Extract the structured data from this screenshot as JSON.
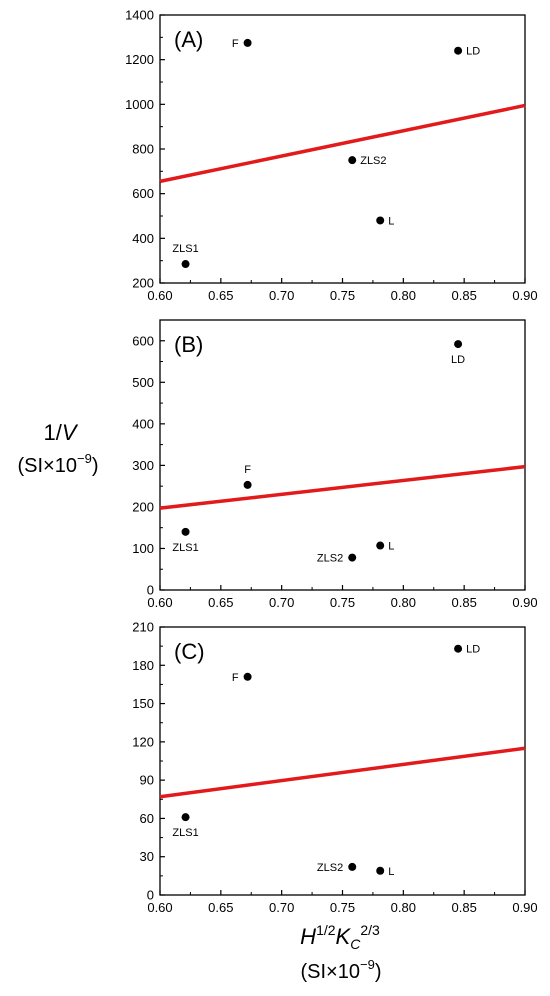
{
  "y_axis_title": {
    "main": "1/",
    "var": "V",
    "units_base": "(SI×10",
    "units_exp": "−9",
    "units_close": ")"
  },
  "x_axis_title": {
    "h": "H",
    "h_exp": "1/2",
    "k": "K",
    "k_sub": "C",
    "k_exp": "2/3",
    "units_base": "(SI×10",
    "units_exp": "−9",
    "units_close": ")"
  },
  "chart_data": [
    {
      "type": "scatter",
      "panel_label": "(A)",
      "xlim": [
        0.6,
        0.9
      ],
      "ylim": [
        200,
        1400
      ],
      "x_ticks": [
        "0.60",
        "0.65",
        "0.70",
        "0.75",
        "0.80",
        "0.85",
        "0.90"
      ],
      "y_ticks": [
        "200",
        "400",
        "600",
        "800",
        "1000",
        "1200",
        "1400"
      ],
      "points": [
        {
          "label": "F",
          "x": 0.672,
          "y": 1275,
          "pos": "left"
        },
        {
          "label": "LD",
          "x": 0.845,
          "y": 1240,
          "pos": "right"
        },
        {
          "label": "ZLS2",
          "x": 0.758,
          "y": 750,
          "pos": "right"
        },
        {
          "label": "L",
          "x": 0.781,
          "y": 480,
          "pos": "right"
        },
        {
          "label": "ZLS1",
          "x": 0.621,
          "y": 285,
          "pos": "above"
        }
      ],
      "fit_line": {
        "x": [
          0.6,
          0.9
        ],
        "y": [
          655,
          995
        ],
        "color": "#e31a1c"
      }
    },
    {
      "type": "scatter",
      "panel_label": "(B)",
      "xlim": [
        0.6,
        0.9
      ],
      "ylim": [
        0,
        650
      ],
      "x_ticks": [
        "0.60",
        "0.65",
        "0.70",
        "0.75",
        "0.80",
        "0.85",
        "0.90"
      ],
      "y_ticks": [
        "0",
        "100",
        "200",
        "300",
        "400",
        "500",
        "600"
      ],
      "points": [
        {
          "label": "LD",
          "x": 0.845,
          "y": 592,
          "pos": "below"
        },
        {
          "label": "F",
          "x": 0.672,
          "y": 253,
          "pos": "above"
        },
        {
          "label": "ZLS1",
          "x": 0.621,
          "y": 140,
          "pos": "below"
        },
        {
          "label": "L",
          "x": 0.781,
          "y": 107,
          "pos": "right"
        },
        {
          "label": "ZLS2",
          "x": 0.758,
          "y": 78,
          "pos": "left"
        }
      ],
      "fit_line": {
        "x": [
          0.6,
          0.9
        ],
        "y": [
          197,
          297
        ],
        "color": "#e31a1c"
      }
    },
    {
      "type": "scatter",
      "panel_label": "(C)",
      "xlim": [
        0.6,
        0.9
      ],
      "ylim": [
        0,
        210
      ],
      "x_ticks": [
        "0.60",
        "0.65",
        "0.70",
        "0.75",
        "0.80",
        "0.85",
        "0.90"
      ],
      "y_ticks": [
        "0",
        "30",
        "60",
        "90",
        "120",
        "150",
        "180",
        "210"
      ],
      "points": [
        {
          "label": "LD",
          "x": 0.845,
          "y": 193,
          "pos": "right"
        },
        {
          "label": "F",
          "x": 0.672,
          "y": 171,
          "pos": "left"
        },
        {
          "label": "ZLS1",
          "x": 0.621,
          "y": 61,
          "pos": "below"
        },
        {
          "label": "ZLS2",
          "x": 0.758,
          "y": 22,
          "pos": "left"
        },
        {
          "label": "L",
          "x": 0.781,
          "y": 19,
          "pos": "right"
        }
      ],
      "fit_line": {
        "x": [
          0.6,
          0.9
        ],
        "y": [
          77,
          115
        ],
        "color": "#e31a1c"
      }
    }
  ]
}
